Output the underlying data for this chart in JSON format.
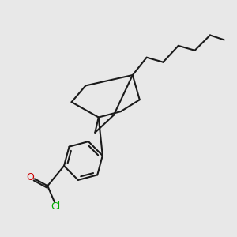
{
  "background_color": "#e8e8e8",
  "line_color": "#1a1a1a",
  "oxygen_color": "#cc0000",
  "chlorine_color": "#00aa00",
  "line_width": 1.5,
  "figsize": [
    3.0,
    3.0
  ],
  "dpi": 100
}
